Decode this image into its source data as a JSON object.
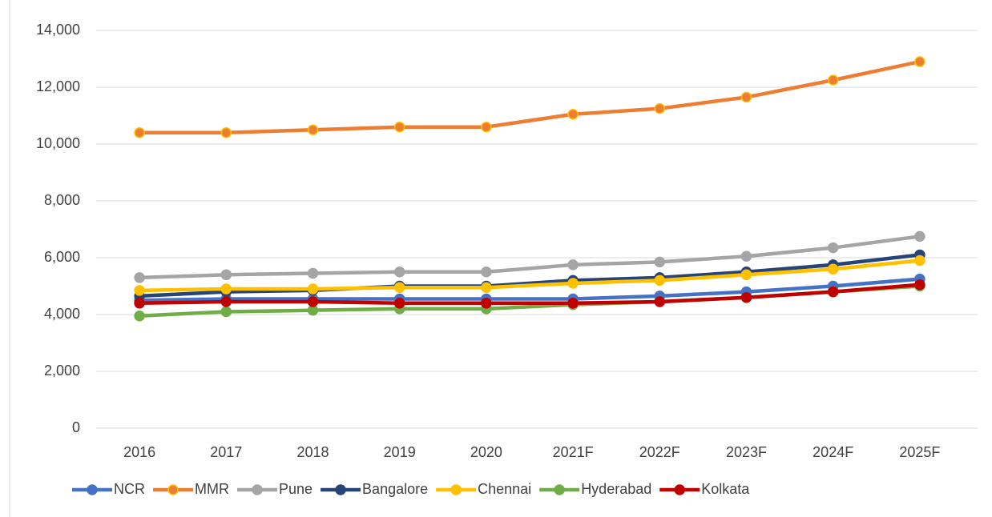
{
  "chart_data": {
    "type": "line",
    "categories": [
      "2016",
      "2017",
      "2018",
      "2019",
      "2020",
      "2021F",
      "2022F",
      "2023F",
      "2024F",
      "2025F"
    ],
    "series": [
      {
        "name": "NCR",
        "color": "#4472c4",
        "values": [
          4500,
          4550,
          4550,
          4550,
          4550,
          4550,
          4650,
          4800,
          5000,
          5250
        ]
      },
      {
        "name": "MMR",
        "color": "#ed7d31",
        "values": [
          10400,
          10400,
          10500,
          10600,
          10600,
          11050,
          11250,
          11650,
          12250,
          12900
        ]
      },
      {
        "name": "Pune",
        "color": "#a5a5a5",
        "values": [
          5300,
          5400,
          5450,
          5500,
          5500,
          5750,
          5850,
          6050,
          6350,
          6750
        ]
      },
      {
        "name": "Bangalore",
        "color": "#264478",
        "values": [
          4650,
          4800,
          4850,
          5000,
          5000,
          5200,
          5300,
          5500,
          5750,
          6100
        ]
      },
      {
        "name": "Chennai",
        "color": "#ffc000",
        "values": [
          4850,
          4900,
          4900,
          4950,
          4950,
          5100,
          5200,
          5400,
          5600,
          5900
        ]
      },
      {
        "name": "Hyderabad",
        "color": "#70ad47",
        "values": [
          3950,
          4100,
          4150,
          4200,
          4200,
          4350,
          4450,
          4600,
          4800,
          5000
        ]
      },
      {
        "name": "Kolkata",
        "color": "#c00000",
        "values": [
          4400,
          4450,
          4450,
          4400,
          4400,
          4400,
          4450,
          4600,
          4800,
          5050
        ]
      }
    ],
    "ylim": [
      0,
      14000
    ],
    "yticks": [
      0,
      {
        "value": 2000,
        "label": "2,000"
      },
      {
        "value": 4000,
        "label": "4,000"
      },
      {
        "value": 6000,
        "label": "6,000"
      },
      {
        "value": 8000,
        "label": "8,000"
      },
      {
        "value": 10000,
        "label": "10,000"
      },
      {
        "value": 12000,
        "label": "12,000"
      },
      {
        "value": 14000,
        "label": "14,000"
      }
    ],
    "grid": true,
    "legend": "bottom"
  }
}
